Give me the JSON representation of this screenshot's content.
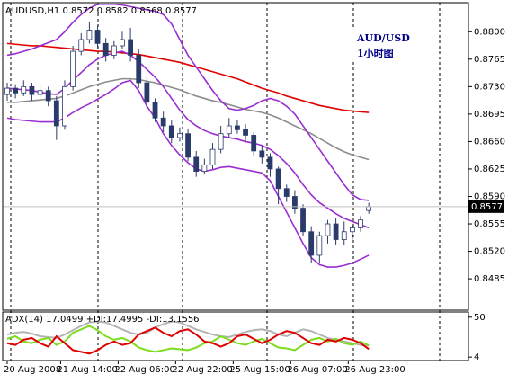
{
  "chart_data": {
    "type": "candlestick",
    "title": "AUDUSD,H1  0.8572 0.8582 0.8568 0.8577",
    "annotations": [
      "AUD/USD",
      "1小时图"
    ],
    "ylim": [
      0.8445,
      0.8837
    ],
    "yticks": [
      {
        "value": 0.88,
        "label": "0.8800"
      },
      {
        "value": 0.8765,
        "label": "0.8765"
      },
      {
        "value": 0.873,
        "label": "0.8730"
      },
      {
        "value": 0.8695,
        "label": "0.8695"
      },
      {
        "value": 0.866,
        "label": "0.8660"
      },
      {
        "value": 0.8625,
        "label": "0.8625"
      },
      {
        "value": 0.859,
        "label": "0.8590"
      },
      {
        "value": 0.8555,
        "label": "0.8555"
      },
      {
        "value": 0.852,
        "label": "0.8520"
      },
      {
        "value": 0.8485,
        "label": "0.8485"
      }
    ],
    "xticks": [
      {
        "value": 0,
        "label": "20 Aug 2008"
      },
      {
        "value": 6.5,
        "label": "21 Aug 14:00"
      },
      {
        "value": 13.5,
        "label": "22 Aug 06:00"
      },
      {
        "value": 20.5,
        "label": "22 Aug 22:00"
      },
      {
        "value": 27.5,
        "label": "25 Aug 15:00"
      },
      {
        "value": 34.5,
        "label": "26 Aug 07:00"
      },
      {
        "value": 41.5,
        "label": "26 Aug 23:00"
      }
    ],
    "candle_color": "#2a3a6a",
    "open": [
      0.872,
      0.8728,
      0.8722,
      0.873,
      0.872,
      0.8725,
      0.8712,
      0.868,
      0.873,
      0.8775,
      0.879,
      0.8802,
      0.8785,
      0.877,
      0.8782,
      0.879,
      0.877,
      0.8735,
      0.871,
      0.869,
      0.868,
      0.8665,
      0.867,
      0.864,
      0.8622,
      0.863,
      0.865,
      0.867,
      0.868,
      0.8675,
      0.8668,
      0.8648,
      0.864,
      0.8625,
      0.86,
      0.859,
      0.8575,
      0.8545,
      0.8515,
      0.854,
      0.8555,
      0.8535,
      0.8545,
      0.855,
      0.8572
    ],
    "high": [
      0.8735,
      0.8733,
      0.8738,
      0.8735,
      0.8732,
      0.873,
      0.8718,
      0.8738,
      0.8782,
      0.8798,
      0.8812,
      0.8808,
      0.8792,
      0.8788,
      0.88,
      0.8805,
      0.8778,
      0.8742,
      0.8715,
      0.8698,
      0.8688,
      0.8678,
      0.8676,
      0.8648,
      0.8638,
      0.8658,
      0.868,
      0.869,
      0.8688,
      0.8682,
      0.8672,
      0.8655,
      0.8645,
      0.8628,
      0.8605,
      0.8598,
      0.858,
      0.8552,
      0.8545,
      0.856,
      0.8562,
      0.8558,
      0.8553,
      0.8565,
      0.8582
    ],
    "low": [
      0.8712,
      0.8715,
      0.8718,
      0.8712,
      0.8715,
      0.8705,
      0.8662,
      0.8675,
      0.8725,
      0.877,
      0.8785,
      0.8778,
      0.8762,
      0.8765,
      0.8778,
      0.8762,
      0.8728,
      0.8702,
      0.8685,
      0.8672,
      0.8658,
      0.866,
      0.8635,
      0.8615,
      0.8618,
      0.8625,
      0.8645,
      0.8665,
      0.867,
      0.866,
      0.8642,
      0.8632,
      0.8615,
      0.858,
      0.8583,
      0.8568,
      0.854,
      0.8505,
      0.8505,
      0.853,
      0.8528,
      0.8528,
      0.8535,
      0.8545,
      0.8568
    ],
    "close": [
      0.8728,
      0.8722,
      0.873,
      0.872,
      0.8725,
      0.8712,
      0.868,
      0.873,
      0.8775,
      0.879,
      0.8802,
      0.8785,
      0.877,
      0.8782,
      0.879,
      0.877,
      0.8735,
      0.871,
      0.869,
      0.868,
      0.8665,
      0.867,
      0.864,
      0.8622,
      0.863,
      0.865,
      0.867,
      0.868,
      0.8675,
      0.8668,
      0.8648,
      0.864,
      0.8625,
      0.86,
      0.859,
      0.8575,
      0.8545,
      0.8515,
      0.854,
      0.8555,
      0.8535,
      0.8545,
      0.855,
      0.856,
      0.8577
    ],
    "series": [
      {
        "color": "#e00000",
        "values": [
          0.8785,
          0.8784,
          0.8783,
          0.8782,
          0.8782,
          0.8781,
          0.878,
          0.8779,
          0.8778,
          0.8777,
          0.8776,
          0.8775,
          0.8775,
          0.8774,
          0.8773,
          0.8772,
          0.8771,
          0.8769,
          0.8767,
          0.8765,
          0.8763,
          0.8761,
          0.8758,
          0.8755,
          0.8752,
          0.8749,
          0.8746,
          0.8743,
          0.874,
          0.8736,
          0.8732,
          0.8728,
          0.8725,
          0.8722,
          0.8718,
          0.8715,
          0.8712,
          0.8709,
          0.8706,
          0.8704,
          0.8702,
          0.87,
          0.8699,
          0.8698,
          0.8697
        ]
      },
      {
        "color": "#8c8c8c",
        "values": [
          0.871,
          0.871,
          0.8711,
          0.8712,
          0.8713,
          0.8714,
          0.8715,
          0.8718,
          0.8722,
          0.8726,
          0.873,
          0.8733,
          0.8736,
          0.8738,
          0.874,
          0.874,
          0.8739,
          0.8737,
          0.8735,
          0.8732,
          0.8729,
          0.8726,
          0.8722,
          0.8718,
          0.8715,
          0.8712,
          0.871,
          0.8707,
          0.8704,
          0.8701,
          0.8699,
          0.8697,
          0.8694,
          0.869,
          0.8685,
          0.868,
          0.8675,
          0.867,
          0.8664,
          0.8658,
          0.8652,
          0.8647,
          0.8643,
          0.864,
          0.8637
        ]
      },
      {
        "color": "#9a2ed0",
        "values": [
          0.877,
          0.8772,
          0.8775,
          0.8778,
          0.8782,
          0.8786,
          0.879,
          0.88,
          0.8812,
          0.8822,
          0.883,
          0.8835,
          0.8835,
          0.8835,
          0.8834,
          0.8832,
          0.883,
          0.8828,
          0.8826,
          0.8822,
          0.881,
          0.879,
          0.877,
          0.8755,
          0.874,
          0.8725,
          0.8712,
          0.8702,
          0.87,
          0.8702,
          0.8706,
          0.8712,
          0.8715,
          0.8712,
          0.8705,
          0.8695,
          0.868,
          0.8665,
          0.865,
          0.8635,
          0.862,
          0.8605,
          0.8592,
          0.8586,
          0.8585
        ]
      },
      {
        "color": "#9a2ed0",
        "values": [
          0.8728,
          0.8727,
          0.8726,
          0.8725,
          0.8723,
          0.8721,
          0.872,
          0.8728,
          0.8738,
          0.8748,
          0.8758,
          0.8765,
          0.877,
          0.8773,
          0.8775,
          0.877,
          0.8762,
          0.8752,
          0.8742,
          0.873,
          0.8715,
          0.87,
          0.8688,
          0.868,
          0.8674,
          0.867,
          0.8667,
          0.8665,
          0.8663,
          0.866,
          0.8658,
          0.8655,
          0.865,
          0.8642,
          0.8632,
          0.862,
          0.8605,
          0.8592,
          0.8582,
          0.8575,
          0.8568,
          0.8562,
          0.8558,
          0.8554,
          0.855
        ]
      },
      {
        "color": "#9a2ed0",
        "values": [
          0.869,
          0.8688,
          0.8687,
          0.8686,
          0.8685,
          0.8685,
          0.8685,
          0.869,
          0.8697,
          0.8703,
          0.8708,
          0.8714,
          0.872,
          0.8727,
          0.8735,
          0.8738,
          0.8725,
          0.8705,
          0.869,
          0.867,
          0.8655,
          0.8643,
          0.8633,
          0.8625,
          0.8622,
          0.8624,
          0.8627,
          0.8628,
          0.8626,
          0.8624,
          0.8622,
          0.862,
          0.861,
          0.859,
          0.857,
          0.855,
          0.853,
          0.8512,
          0.8503,
          0.85,
          0.85,
          0.8502,
          0.8505,
          0.851,
          0.8515
        ]
      }
    ],
    "indicator": {
      "label": "ADX(14) 17.0499 +DI:17.4995 -DI:13.1556",
      "ylim": [
        0,
        56
      ],
      "yticks": [
        50,
        4
      ],
      "series": [
        {
          "color": "#b4b4b4",
          "values": [
            30,
            32,
            33,
            31,
            28,
            27,
            26,
            30,
            35,
            40,
            44,
            45,
            44,
            40,
            36,
            32,
            30,
            32,
            38,
            42,
            45,
            44,
            40,
            36,
            33,
            30,
            28,
            27,
            30,
            33,
            35,
            36,
            34,
            30,
            28,
            32,
            36,
            34,
            30,
            26,
            24,
            22,
            20,
            18,
            17.0499
          ]
        },
        {
          "color": "#7ddc1f",
          "values": [
            25,
            28,
            22,
            20,
            24,
            26,
            18,
            22,
            32,
            36,
            40,
            35,
            28,
            24,
            26,
            22,
            15,
            12,
            10,
            12,
            14,
            13,
            12,
            15,
            20,
            22,
            28,
            24,
            20,
            18,
            22,
            25,
            20,
            15,
            14,
            12,
            18,
            24,
            26,
            22,
            25,
            20,
            18,
            22,
            17.4995
          ]
        },
        {
          "color": "#e00000",
          "values": [
            20,
            18,
            24,
            26,
            20,
            16,
            28,
            20,
            12,
            10,
            8,
            12,
            18,
            22,
            18,
            20,
            30,
            34,
            38,
            32,
            28,
            34,
            36,
            30,
            22,
            20,
            16,
            20,
            28,
            30,
            25,
            20,
            24,
            30,
            34,
            32,
            26,
            20,
            18,
            24,
            22,
            26,
            24,
            20,
            13.1556
          ]
        }
      ]
    }
  }
}
